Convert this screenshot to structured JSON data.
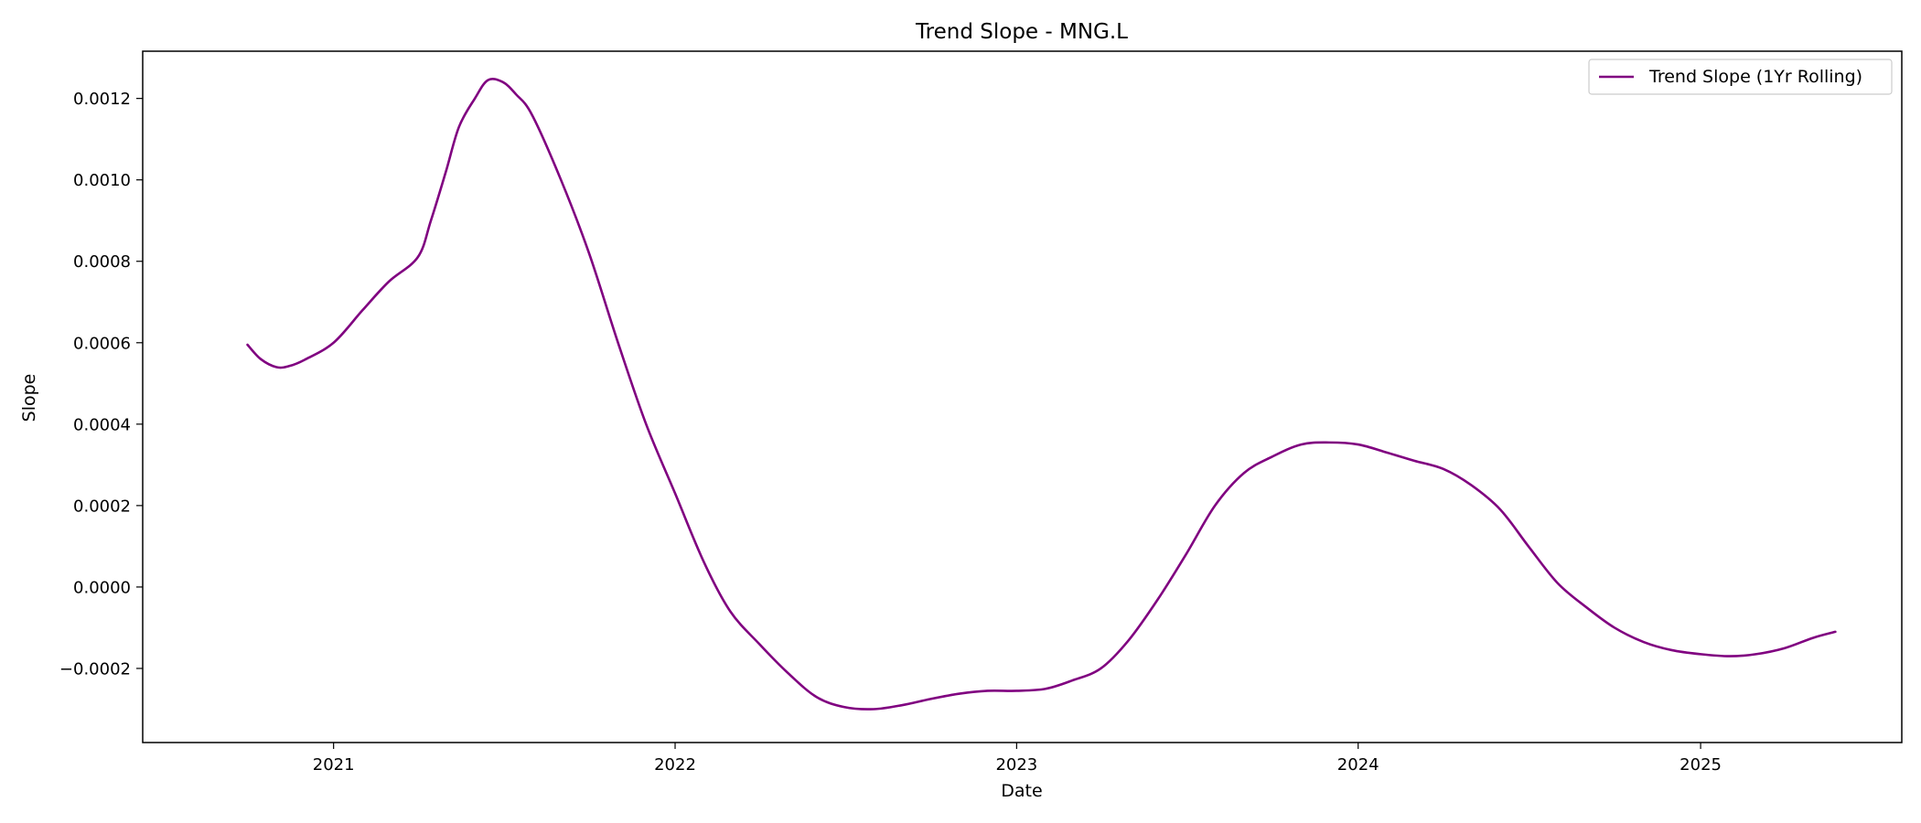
{
  "chart_data": {
    "type": "line",
    "title": "Trend Slope - MNG.L",
    "xlabel": "Date",
    "ylabel": "Slope",
    "xlim": [
      "2020-06-11",
      "2025-08-04"
    ],
    "ylim": [
      -0.000382,
      0.001316
    ],
    "x_ticks": [
      "2021-01-01",
      "2022-01-01",
      "2023-01-01",
      "2024-01-01",
      "2025-01-01"
    ],
    "x_tick_labels": [
      "2021",
      "2022",
      "2023",
      "2024",
      "2025"
    ],
    "y_ticks": [
      -0.0002,
      0.0,
      0.0002,
      0.0004,
      0.0006,
      0.0008,
      0.001,
      0.0012
    ],
    "y_tick_labels": [
      "−0.0002",
      "0.0000",
      "0.0002",
      "0.0004",
      "0.0006",
      "0.0008",
      "0.0010",
      "0.0012"
    ],
    "grid": false,
    "legend": {
      "position": "top-right"
    },
    "series": [
      {
        "name": "Trend Slope (1Yr Rolling)",
        "color": "#800080",
        "x": [
          "2020-10-01",
          "2020-10-15",
          "2020-11-01",
          "2020-11-15",
          "2020-12-01",
          "2021-01-01",
          "2021-02-01",
          "2021-03-01",
          "2021-04-01",
          "2021-04-15",
          "2021-05-01",
          "2021-05-15",
          "2021-06-01",
          "2021-06-15",
          "2021-07-01",
          "2021-07-15",
          "2021-08-01",
          "2021-09-01",
          "2021-10-01",
          "2021-11-01",
          "2021-12-01",
          "2022-01-01",
          "2022-02-01",
          "2022-03-01",
          "2022-04-01",
          "2022-05-01",
          "2022-06-01",
          "2022-07-01",
          "2022-08-01",
          "2022-09-01",
          "2022-10-01",
          "2022-11-01",
          "2022-12-01",
          "2023-01-01",
          "2023-02-01",
          "2023-03-01",
          "2023-04-01",
          "2023-05-01",
          "2023-06-01",
          "2023-07-01",
          "2023-08-01",
          "2023-09-01",
          "2023-10-01",
          "2023-11-01",
          "2023-12-01",
          "2024-01-01",
          "2024-02-01",
          "2024-03-01",
          "2024-04-01",
          "2024-05-01",
          "2024-06-01",
          "2024-07-01",
          "2024-08-01",
          "2024-09-01",
          "2024-10-01",
          "2024-11-01",
          "2024-12-01",
          "2025-01-01",
          "2025-02-01",
          "2025-03-01",
          "2025-04-01",
          "2025-05-01",
          "2025-05-25"
        ],
        "y": [
          0.000595,
          0.00056,
          0.00054,
          0.000543,
          0.000558,
          0.0006,
          0.00068,
          0.00075,
          0.00081,
          0.0009,
          0.00102,
          0.00113,
          0.0012,
          0.001245,
          0.00124,
          0.00121,
          0.00116,
          0.001,
          0.00082,
          0.0006,
          0.0004,
          0.00023,
          6e-05,
          -6e-05,
          -0.00014,
          -0.00021,
          -0.00027,
          -0.000295,
          -0.0003,
          -0.00029,
          -0.000275,
          -0.000262,
          -0.000255,
          -0.000255,
          -0.00025,
          -0.00023,
          -0.0002,
          -0.00013,
          -3e-05,
          8e-05,
          0.0002,
          0.00028,
          0.00032,
          0.00035,
          0.000355,
          0.00035,
          0.00033,
          0.00031,
          0.00029,
          0.00025,
          0.00019,
          0.0001,
          1e-05,
          -5e-05,
          -0.0001,
          -0.000135,
          -0.000155,
          -0.000165,
          -0.00017,
          -0.000165,
          -0.00015,
          -0.000125,
          -0.00011
        ]
      }
    ]
  }
}
